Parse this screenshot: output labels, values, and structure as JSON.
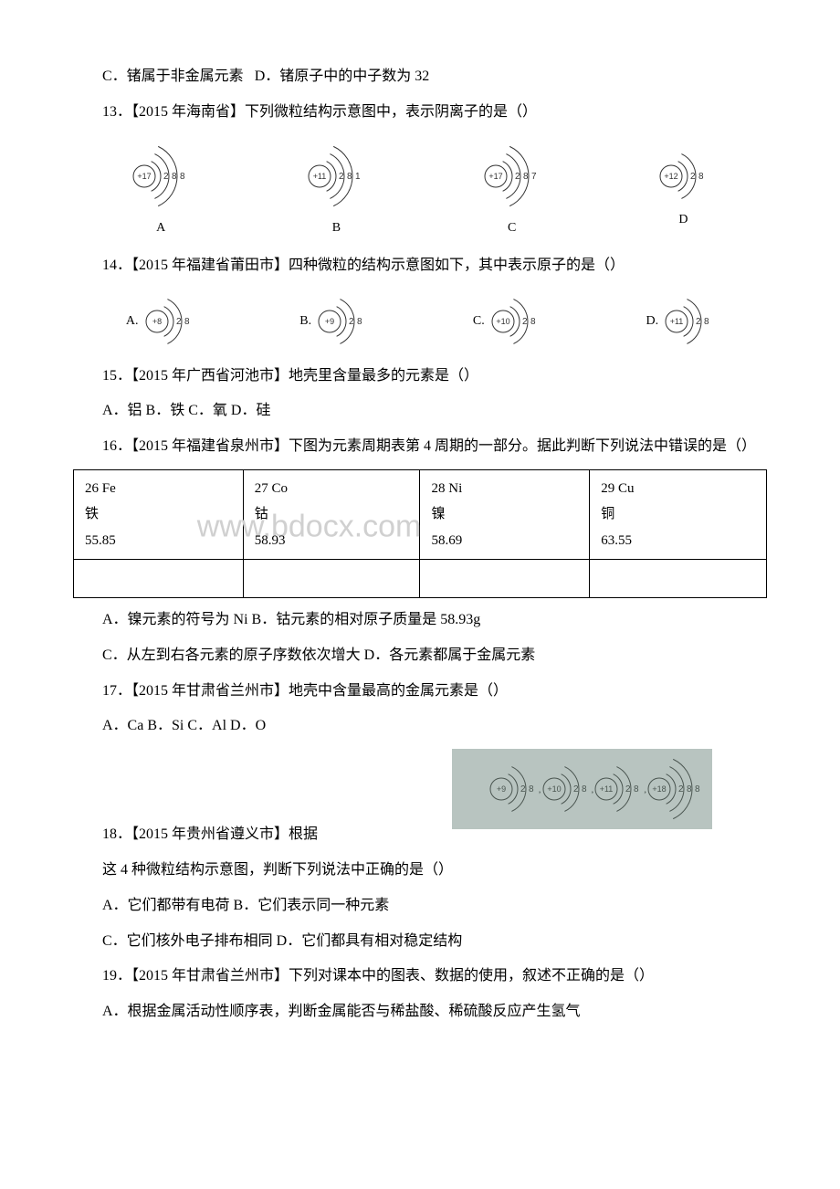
{
  "q12": {
    "optC": "C．锗属于非金属元素",
    "optD": "D．锗原子中的中子数为 32"
  },
  "q13": {
    "stem": "13．【2015 年海南省】下列微粒结构示意图中，表示阴离子的是（）",
    "options": [
      {
        "label": "A",
        "nucleus": "+17",
        "shells": [
          "2",
          "8",
          "8"
        ]
      },
      {
        "label": "B",
        "nucleus": "+11",
        "shells": [
          "2",
          "8",
          "1"
        ]
      },
      {
        "label": "C",
        "nucleus": "+17",
        "shells": [
          "2",
          "8",
          "7"
        ]
      },
      {
        "label": "D",
        "nucleus": "+12",
        "shells": [
          "2",
          "8"
        ]
      }
    ]
  },
  "q14": {
    "stem": "14．【2015 年福建省莆田市】四种微粒的结构示意图如下，其中表示原子的是（）",
    "options": [
      {
        "label": "A.",
        "nucleus": "+8",
        "shells": [
          "2",
          "8"
        ]
      },
      {
        "label": "B.",
        "nucleus": "+9",
        "shells": [
          "2",
          "8"
        ]
      },
      {
        "label": "C.",
        "nucleus": "+10",
        "shells": [
          "2",
          "8"
        ]
      },
      {
        "label": "D.",
        "nucleus": "+11",
        "shells": [
          "2",
          "8"
        ]
      }
    ]
  },
  "q15": {
    "stem": "15．【2015 年广西省河池市】地壳里含量最多的元素是（）",
    "opts": "A．铝 B．铁 C．氧 D．硅"
  },
  "q16": {
    "stem": "16．【2015 年福建省泉州市】下图为元素周期表第 4 周期的一部分。据此判断下列说法中错误的是（）",
    "table": {
      "cells": [
        {
          "header": "26 Fe",
          "name": "铁",
          "mass": "55.85"
        },
        {
          "header": "27 Co",
          "name": "钴",
          "mass": "58.93"
        },
        {
          "header": "28 Ni",
          "name": "镍",
          "mass": "58.69"
        },
        {
          "header": "29 Cu",
          "name": "铜",
          "mass": "63.55"
        }
      ]
    },
    "watermark": "www.bdocx.com",
    "optAB": "A．镍元素的符号为 Ni B．钴元素的相对原子质量是 58.93g",
    "optCD": "C．从左到右各元素的原子序数依次增大 D．各元素都属于金属元素"
  },
  "q17": {
    "stem": "17．【2015 年甘肃省兰州市】地壳中含量最高的金属元素是（）",
    "opts": "A．Ca B．Si C．Al D．O"
  },
  "q18": {
    "stem_prefix": "18．【2015 年贵州省遵义市】根据",
    "particles": [
      {
        "nucleus": "+9",
        "shells": [
          "2",
          "8"
        ]
      },
      {
        "nucleus": "+10",
        "shells": [
          "2",
          "8"
        ]
      },
      {
        "nucleus": "+11",
        "shells": [
          "2",
          "8"
        ]
      },
      {
        "nucleus": "+18",
        "shells": [
          "2",
          "8",
          "8"
        ]
      }
    ],
    "line2": "这 4 种微粒结构示意图，判断下列说法中正确的是（）",
    "optAB": "A．它们都带有电荷 B．它们表示同一种元素",
    "optCD": "C．它们核外电子排布相同 D．它们都具有相对稳定结构"
  },
  "q19": {
    "stem": "19．【2015 年甘肃省兰州市】下列对课本中的图表、数据的使用，叙述不正确的是（）",
    "optA": "A．根据金属活动性顺序表，判断金属能否与稀盐酸、稀硫酸反应产生氢气"
  },
  "svg": {
    "arc_stroke": "#333333",
    "circle_stroke": "#333333",
    "text_color": "#333333",
    "q18_stroke": "#4a5550"
  }
}
